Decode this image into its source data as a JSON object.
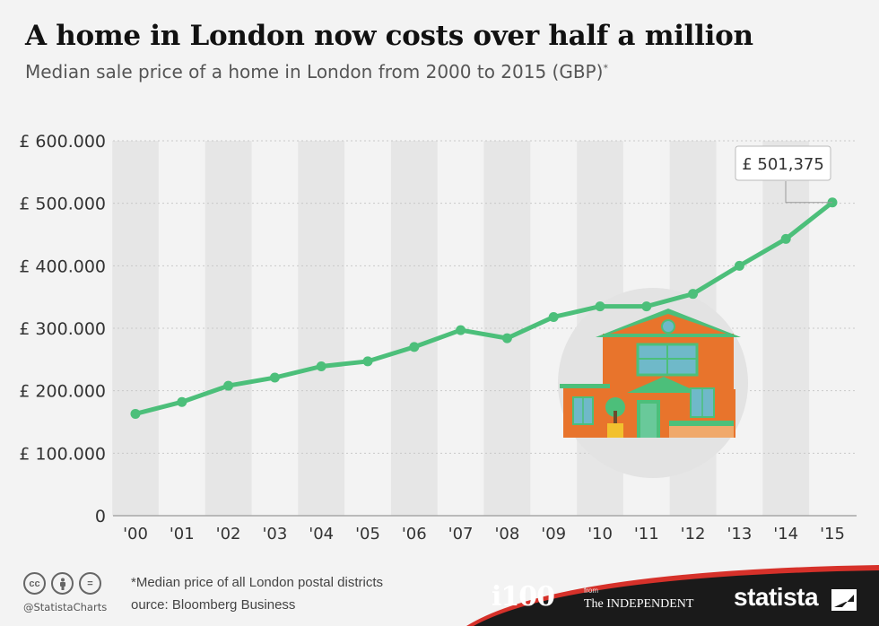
{
  "title": "A home in London now costs over half a million",
  "subtitle": "Median sale price of a home in London from 2000 to 2015 (GBP)",
  "subtitle_marker": "*",
  "chart_data": {
    "type": "line",
    "title": "A home in London now costs over half a million",
    "subtitle": "Median sale price of a home in London from 2000 to 2015 (GBP)*",
    "categories": [
      "'00",
      "'01",
      "'02",
      "'03",
      "'04",
      "'05",
      "'06",
      "'07",
      "'08",
      "'09",
      "'10",
      "'11",
      "'12",
      "'13",
      "'14",
      "'15"
    ],
    "values": [
      163000,
      182000,
      208000,
      221000,
      239000,
      247000,
      270000,
      297000,
      284000,
      318000,
      335000,
      335000,
      355000,
      400000,
      443000,
      501375
    ],
    "ylim": [
      0,
      600000
    ],
    "yticks": [
      0,
      100000,
      200000,
      300000,
      400000,
      500000,
      600000
    ],
    "ytick_labels": [
      "0",
      "£ 100.000",
      "£ 200.000",
      "£ 300.000",
      "£ 400.000",
      "£ 500.000",
      "£ 600.000"
    ],
    "callout": "£ 501,375",
    "line_color": "#4cbf7a",
    "grid": true
  },
  "footer": {
    "note": "*Median price of all London postal districts",
    "source": "ource: Bloomberg Business",
    "handle": "@StatistaCharts",
    "cc_icons": [
      "cc",
      "by",
      "="
    ],
    "brand_i100": "i100",
    "brand_from": "from",
    "brand_indy": "The INDEPENDENT",
    "brand_statista": "statista"
  },
  "colors": {
    "accent_green": "#4cbf7a",
    "footer_dark": "#1a1a1a",
    "footer_red": "#d6312a"
  },
  "illustration": "house-icon"
}
